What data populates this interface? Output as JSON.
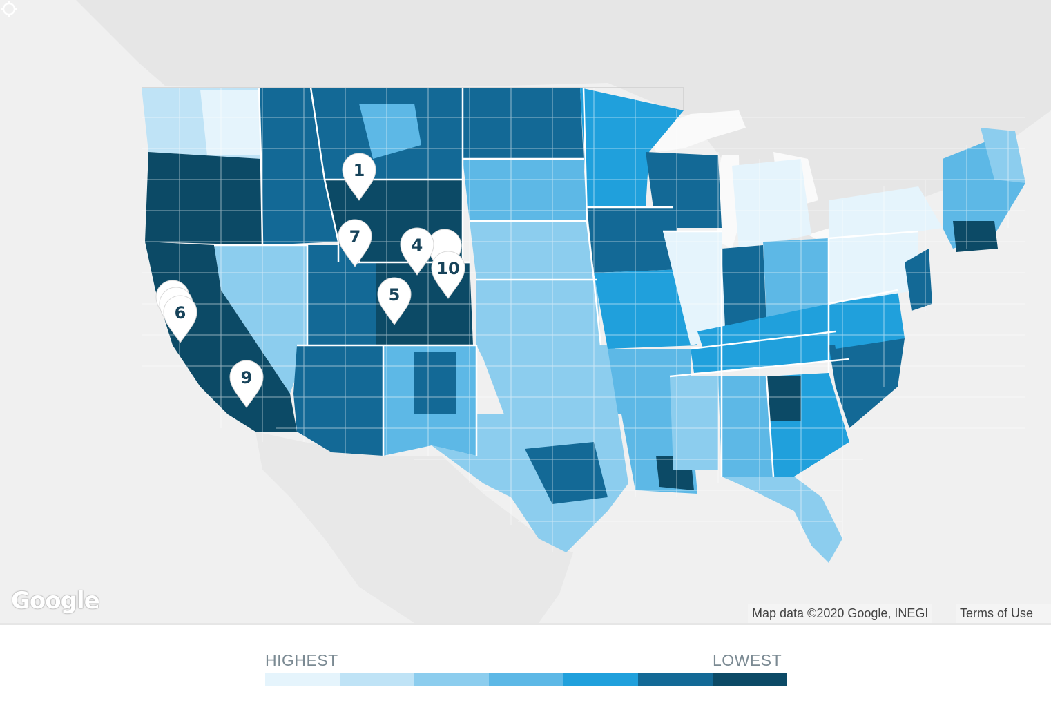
{
  "map": {
    "attribution": "Map data ©2020 Google, INEGI",
    "terms_link": "Terms of Use",
    "logo": "Google",
    "compass_icon": "compass-icon",
    "markers": [
      {
        "label": "1"
      },
      {
        "label": "7"
      },
      {
        "label": "4"
      },
      {
        "label": "10"
      },
      {
        "label": "5"
      },
      {
        "label": "6"
      },
      {
        "label": "9"
      }
    ]
  },
  "legend": {
    "high_label": "HIGHEST",
    "low_label": "LOWEST",
    "colors": [
      "#e5f4fc",
      "#bfe3f6",
      "#8ccdee",
      "#5db8e6",
      "#20a0dc",
      "#136996",
      "#0c4a66"
    ]
  }
}
